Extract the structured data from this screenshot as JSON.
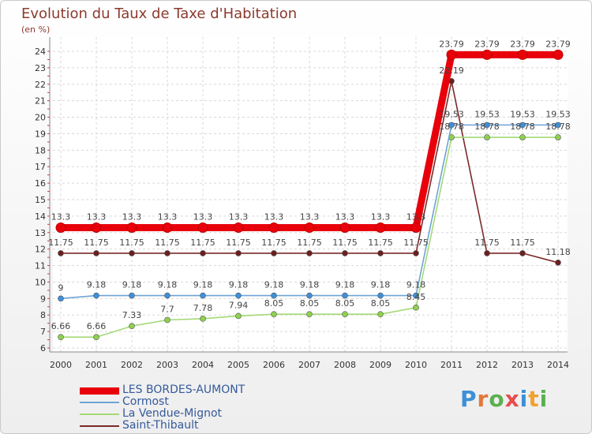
{
  "chart_data": {
    "type": "line",
    "title": "Evolution du Taux de Taxe d'Habitation",
    "ylabel": "(en %)",
    "xlabel": "",
    "ylim": [
      6,
      24
    ],
    "yticks": [
      6,
      7,
      8,
      9,
      10,
      11,
      12,
      13,
      14,
      15,
      16,
      17,
      18,
      19,
      20,
      21,
      22,
      23,
      24
    ],
    "categories": [
      "2000",
      "2001",
      "2002",
      "2003",
      "2004",
      "2005",
      "2006",
      "2007",
      "2008",
      "2009",
      "2010",
      "2011",
      "2012",
      "2013",
      "2014"
    ],
    "grid": true,
    "legend_position": "bottom-left",
    "series": [
      {
        "name": "LES BORDES-AUMONT",
        "color": "#e8000b",
        "marker_fill": "#e8000b",
        "values": [
          13.3,
          13.3,
          13.3,
          13.3,
          13.3,
          13.3,
          13.3,
          13.3,
          13.3,
          13.3,
          13.3,
          23.79,
          23.79,
          23.79,
          23.79
        ],
        "labels": [
          "13.3",
          "13.3",
          "13.3",
          "13.3",
          "13.3",
          "13.3",
          "13.3",
          "13.3",
          "13.3",
          "13.3",
          "13.3",
          "23.79",
          "23.79",
          "23.79",
          "23.79"
        ]
      },
      {
        "name": "Cormost",
        "color": "#6fa3d6",
        "marker_fill": "#3f8fd8",
        "values": [
          9,
          9.18,
          9.18,
          9.18,
          9.18,
          9.18,
          9.18,
          9.18,
          9.18,
          9.18,
          9.18,
          19.53,
          19.53,
          19.53,
          19.53
        ],
        "labels": [
          "9",
          "9.18",
          "9.18",
          "9.18",
          "9.18",
          "9.18",
          "9.18",
          "9.18",
          "9.18",
          "9.18",
          "9.18",
          "19.53",
          "19.53",
          "19.53",
          "19.53"
        ]
      },
      {
        "name": "La Vendue-Mignot",
        "color": "#a3d977",
        "marker_fill": "#8fd04f",
        "values": [
          6.66,
          6.66,
          7.33,
          7.7,
          7.78,
          7.94,
          8.05,
          8.05,
          8.05,
          8.05,
          8.45,
          18.78,
          18.78,
          18.78,
          18.78
        ],
        "labels": [
          "6.66",
          "6.66",
          "7.33",
          "7.7",
          "7.78",
          "7.94",
          "8.05",
          "8.05",
          "8.05",
          "8.05",
          "8.45",
          "18.78",
          "18.78",
          "18.78",
          "18.78"
        ]
      },
      {
        "name": "Saint-Thibault",
        "color": "#7a2a2a",
        "marker_fill": "#6b1f1f",
        "values": [
          11.75,
          11.75,
          11.75,
          11.75,
          11.75,
          11.75,
          11.75,
          11.75,
          11.75,
          11.75,
          11.75,
          22.19,
          11.75,
          11.75,
          11.18
        ],
        "labels": [
          "11.75",
          "11.75",
          "11.75",
          "11.75",
          "11.75",
          "11.75",
          "11.75",
          "11.75",
          "11.75",
          "11.75",
          "11.75",
          "22.19",
          "11.75",
          "11.75",
          "11.18"
        ]
      }
    ]
  },
  "brand": {
    "logo_text": "Proxiti"
  }
}
